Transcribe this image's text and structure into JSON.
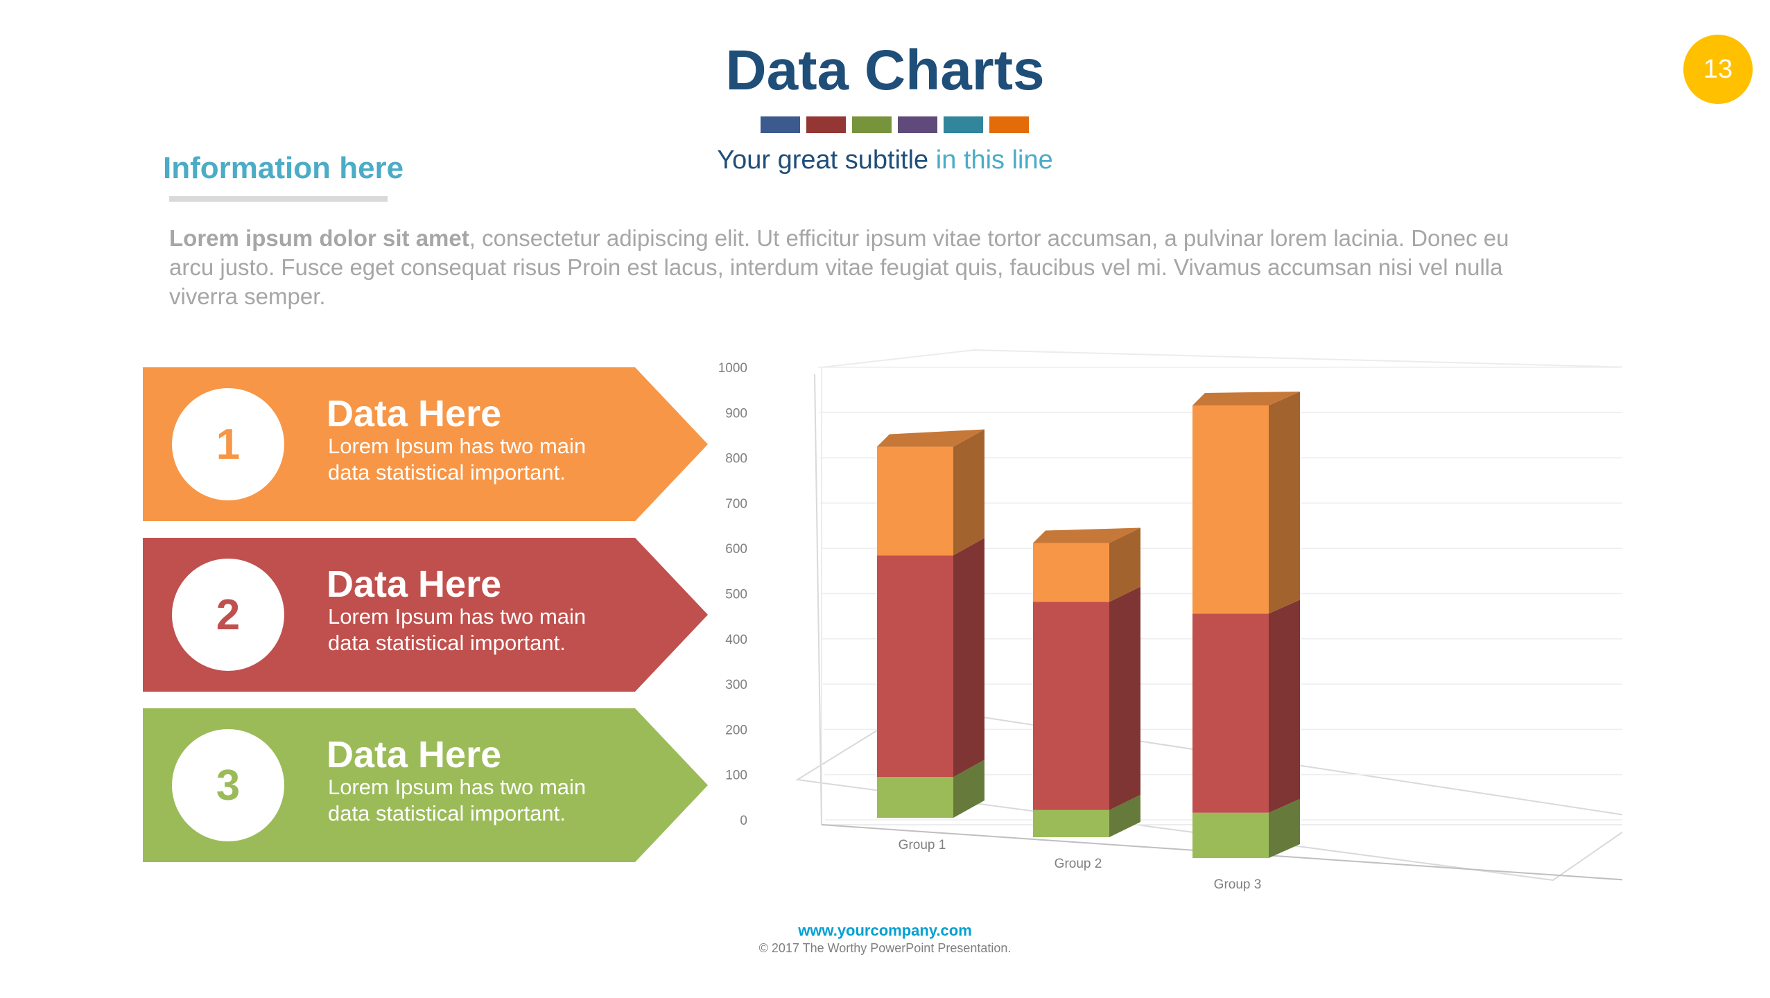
{
  "header": {
    "title": "Data Charts",
    "subtitle_main": "Your great subtitle",
    "subtitle_accent": "in this line",
    "page_number": "13",
    "swatch_colors": [
      "#3c5a8d",
      "#943634",
      "#77933c",
      "#604a7b",
      "#31859c",
      "#e36c09"
    ]
  },
  "info": {
    "heading": "Information here",
    "body_bold": "Lorem ipsum dolor sit amet",
    "body_rest": ", consectetur adipiscing elit. Ut efficitur ipsum vitae tortor accumsan, a pulvinar lorem lacinia. Donec eu arcu justo. Fusce eget consequat risus Proin est lacus, interdum vitae feugiat quis, faucibus vel mi.  Vivamus accumsan nisi vel nulla viverra semper."
  },
  "cards": [
    {
      "number": "1",
      "title": "Data Here",
      "text_line1": "Lorem Ipsum has two main",
      "text_line2": "data statistical important.",
      "color": "#f79646"
    },
    {
      "number": "2",
      "title": "Data Here",
      "text_line1": "Lorem Ipsum has two main",
      "text_line2": "data statistical important.",
      "color": "#c0504d"
    },
    {
      "number": "3",
      "title": "Data Here",
      "text_line1": "Lorem Ipsum has two main",
      "text_line2": "data statistical important.",
      "color": "#9bbb59"
    }
  ],
  "chart_data": {
    "type": "bar",
    "stacked": true,
    "three_d": true,
    "categories": [
      "Group 1",
      "Group 2",
      "Group 3"
    ],
    "series": [
      {
        "values": [
          90,
          60,
          100
        ],
        "color": "#9bbb59"
      },
      {
        "values": [
          490,
          460,
          440
        ],
        "color": "#c0504d"
      },
      {
        "values": [
          240,
          130,
          460
        ],
        "color": "#f79646"
      }
    ],
    "ylim": [
      0,
      1000
    ],
    "yticks": [
      "0",
      "100",
      "200",
      "300",
      "400",
      "500",
      "600",
      "700",
      "800",
      "900",
      "1000"
    ],
    "grid": true,
    "legend": "none"
  },
  "footer": {
    "url": "www.yourcompany.com",
    "copyright": "© 2017 The Worthy PowerPoint Presentation."
  }
}
